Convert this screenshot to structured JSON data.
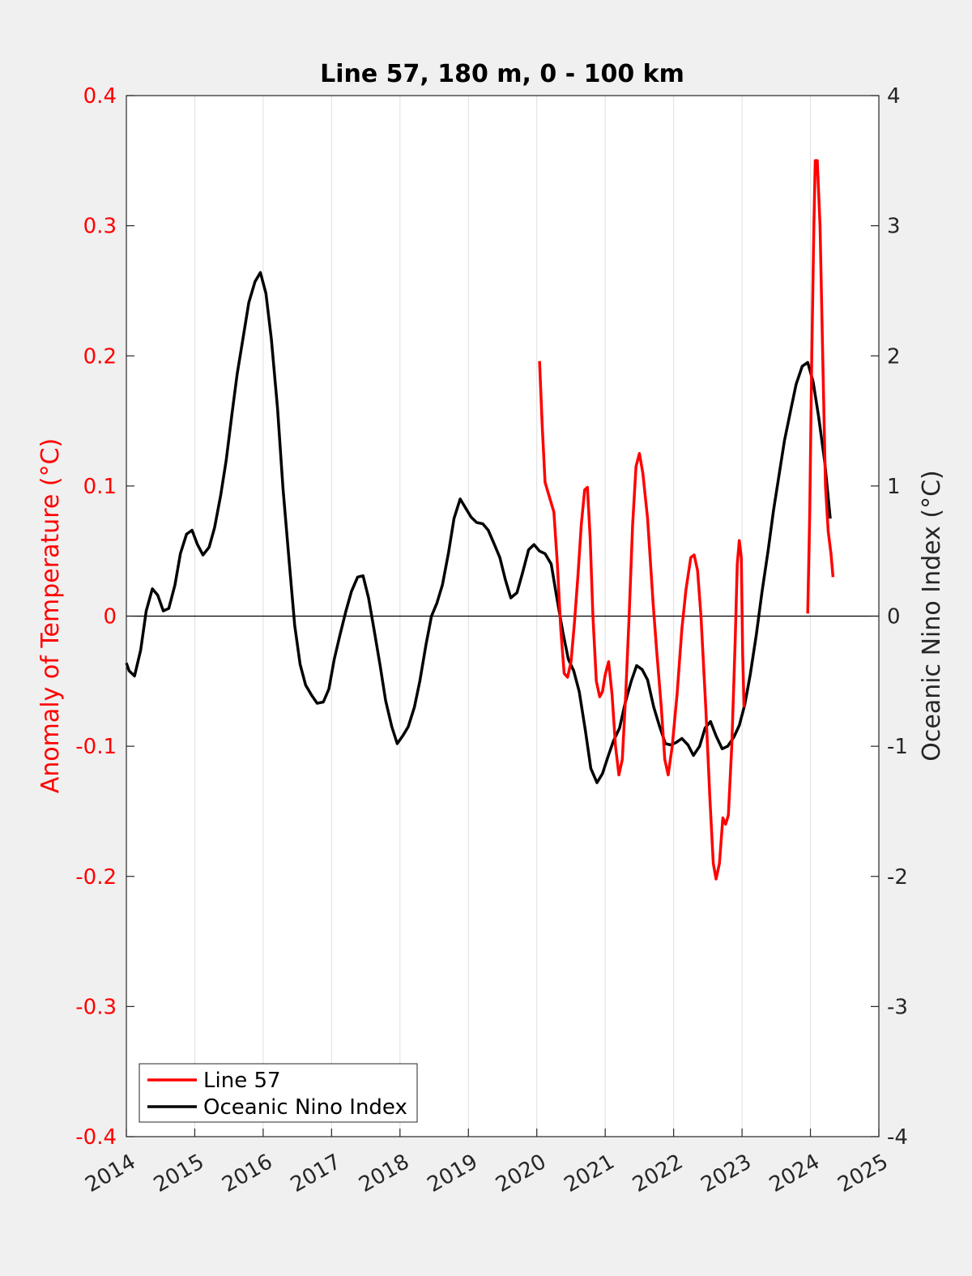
{
  "chart_data": {
    "type": "line",
    "title": "Line 57, 180 m, 0 - 100 km",
    "ylabel_left": "Anomaly of Temperature (°C)",
    "ylabel_right": "Oceanic Nino Index (°C)",
    "xlim": [
      2014,
      2025
    ],
    "ylim_left": [
      -0.4,
      0.4
    ],
    "ylim_right": [
      -4,
      4
    ],
    "xticks": [
      "2014",
      "2015",
      "2016",
      "2017",
      "2018",
      "2019",
      "2020",
      "2021",
      "2022",
      "2023",
      "2024",
      "2025"
    ],
    "yticks_left": [
      "0.4",
      "0.3",
      "0.2",
      "0.1",
      "0",
      "-0.1",
      "-0.2",
      "-0.3",
      "-0.4"
    ],
    "yticks_right": [
      "4",
      "3",
      "2",
      "1",
      "0",
      "-1",
      "-2",
      "-3",
      "-4"
    ],
    "grid": "vertical",
    "zero_line": true,
    "legend_position": "bottom-left",
    "series": [
      {
        "name": "Line 57",
        "axis": "left",
        "color": "#ff0000",
        "segments": [
          [
            [
              2020.04,
              0.196
            ],
            [
              2020.08,
              0.145
            ],
            [
              2020.12,
              0.103
            ],
            [
              2020.17,
              0.094
            ],
            [
              2020.25,
              0.08
            ],
            [
              2020.3,
              0.04
            ],
            [
              2020.35,
              -0.01
            ],
            [
              2020.4,
              -0.044
            ],
            [
              2020.45,
              -0.047
            ],
            [
              2020.5,
              -0.035
            ],
            [
              2020.55,
              -0.005
            ],
            [
              2020.6,
              0.03
            ],
            [
              2020.65,
              0.07
            ],
            [
              2020.7,
              0.097
            ],
            [
              2020.74,
              0.099
            ],
            [
              2020.78,
              0.06
            ],
            [
              2020.82,
              0.0
            ],
            [
              2020.87,
              -0.05
            ],
            [
              2020.92,
              -0.062
            ],
            [
              2020.96,
              -0.058
            ],
            [
              2021.0,
              -0.045
            ],
            [
              2021.05,
              -0.035
            ],
            [
              2021.1,
              -0.06
            ],
            [
              2021.15,
              -0.1
            ],
            [
              2021.2,
              -0.122
            ],
            [
              2021.25,
              -0.11
            ],
            [
              2021.3,
              -0.06
            ],
            [
              2021.35,
              0.0
            ],
            [
              2021.4,
              0.07
            ],
            [
              2021.45,
              0.115
            ],
            [
              2021.5,
              0.125
            ],
            [
              2021.55,
              0.11
            ],
            [
              2021.62,
              0.075
            ],
            [
              2021.7,
              0.01
            ],
            [
              2021.75,
              -0.025
            ],
            [
              2021.82,
              -0.07
            ],
            [
              2021.87,
              -0.11
            ],
            [
              2021.92,
              -0.122
            ],
            [
              2021.98,
              -0.1
            ],
            [
              2022.05,
              -0.06
            ],
            [
              2022.12,
              -0.01
            ],
            [
              2022.18,
              0.02
            ],
            [
              2022.25,
              0.045
            ],
            [
              2022.3,
              0.047
            ],
            [
              2022.35,
              0.035
            ],
            [
              2022.4,
              0.0
            ],
            [
              2022.47,
              -0.07
            ],
            [
              2022.53,
              -0.14
            ],
            [
              2022.58,
              -0.19
            ],
            [
              2022.62,
              -0.202
            ],
            [
              2022.67,
              -0.19
            ],
            [
              2022.72,
              -0.155
            ],
            [
              2022.76,
              -0.16
            ],
            [
              2022.8,
              -0.153
            ],
            [
              2022.85,
              -0.1
            ],
            [
              2022.9,
              -0.02
            ],
            [
              2022.93,
              0.04
            ],
            [
              2022.96,
              0.058
            ],
            [
              2022.99,
              0.045
            ],
            [
              2023.01,
              -0.03
            ],
            [
              2023.03,
              -0.07
            ]
          ],
          [
            [
              2023.96,
              0.002
            ],
            [
              2023.99,
              0.08
            ],
            [
              2024.02,
              0.2
            ],
            [
              2024.05,
              0.3
            ],
            [
              2024.07,
              0.35
            ],
            [
              2024.1,
              0.35
            ],
            [
              2024.14,
              0.3
            ],
            [
              2024.18,
              0.2
            ],
            [
              2024.22,
              0.1
            ],
            [
              2024.26,
              0.065
            ],
            [
              2024.3,
              0.048
            ],
            [
              2024.33,
              0.03
            ]
          ]
        ]
      },
      {
        "name": "Oceanic Nino Index",
        "axis": "right",
        "color": "#000000",
        "segments": [
          [
            [
              2014.0,
              -0.36
            ],
            [
              2014.04,
              -0.42
            ],
            [
              2014.12,
              -0.46
            ],
            [
              2014.21,
              -0.26
            ],
            [
              2014.29,
              0.04
            ],
            [
              2014.38,
              0.21
            ],
            [
              2014.46,
              0.16
            ],
            [
              2014.54,
              0.04
            ],
            [
              2014.62,
              0.06
            ],
            [
              2014.71,
              0.24
            ],
            [
              2014.79,
              0.48
            ],
            [
              2014.88,
              0.63
            ],
            [
              2014.96,
              0.66
            ],
            [
              2015.04,
              0.55
            ],
            [
              2015.12,
              0.47
            ],
            [
              2015.21,
              0.53
            ],
            [
              2015.29,
              0.68
            ],
            [
              2015.38,
              0.93
            ],
            [
              2015.46,
              1.2
            ],
            [
              2015.54,
              1.54
            ],
            [
              2015.62,
              1.86
            ],
            [
              2015.71,
              2.15
            ],
            [
              2015.79,
              2.41
            ],
            [
              2015.88,
              2.57
            ],
            [
              2015.96,
              2.64
            ],
            [
              2016.04,
              2.48
            ],
            [
              2016.12,
              2.13
            ],
            [
              2016.21,
              1.6
            ],
            [
              2016.29,
              0.98
            ],
            [
              2016.38,
              0.42
            ],
            [
              2016.46,
              -0.07
            ],
            [
              2016.54,
              -0.37
            ],
            [
              2016.62,
              -0.53
            ],
            [
              2016.71,
              -0.61
            ],
            [
              2016.79,
              -0.67
            ],
            [
              2016.88,
              -0.66
            ],
            [
              2016.96,
              -0.56
            ],
            [
              2017.04,
              -0.33
            ],
            [
              2017.12,
              -0.15
            ],
            [
              2017.21,
              0.04
            ],
            [
              2017.29,
              0.19
            ],
            [
              2017.38,
              0.3
            ],
            [
              2017.46,
              0.31
            ],
            [
              2017.54,
              0.14
            ],
            [
              2017.62,
              -0.1
            ],
            [
              2017.71,
              -0.38
            ],
            [
              2017.79,
              -0.65
            ],
            [
              2017.88,
              -0.85
            ],
            [
              2017.96,
              -0.98
            ],
            [
              2018.04,
              -0.92
            ],
            [
              2018.12,
              -0.85
            ],
            [
              2018.21,
              -0.7
            ],
            [
              2018.29,
              -0.5
            ],
            [
              2018.38,
              -0.22
            ],
            [
              2018.46,
              0.0
            ],
            [
              2018.54,
              0.1
            ],
            [
              2018.62,
              0.24
            ],
            [
              2018.71,
              0.49
            ],
            [
              2018.79,
              0.75
            ],
            [
              2018.88,
              0.9
            ],
            [
              2018.96,
              0.83
            ],
            [
              2019.04,
              0.76
            ],
            [
              2019.12,
              0.72
            ],
            [
              2019.21,
              0.71
            ],
            [
              2019.29,
              0.66
            ],
            [
              2019.38,
              0.55
            ],
            [
              2019.46,
              0.45
            ],
            [
              2019.54,
              0.28
            ],
            [
              2019.62,
              0.14
            ],
            [
              2019.71,
              0.18
            ],
            [
              2019.79,
              0.33
            ],
            [
              2019.88,
              0.51
            ],
            [
              2019.96,
              0.55
            ],
            [
              2020.04,
              0.5
            ],
            [
              2020.12,
              0.48
            ],
            [
              2020.21,
              0.4
            ],
            [
              2020.29,
              0.15
            ],
            [
              2020.38,
              -0.12
            ],
            [
              2020.46,
              -0.33
            ],
            [
              2020.54,
              -0.42
            ],
            [
              2020.62,
              -0.58
            ],
            [
              2020.71,
              -0.88
            ],
            [
              2020.79,
              -1.17
            ],
            [
              2020.88,
              -1.28
            ],
            [
              2020.96,
              -1.21
            ],
            [
              2021.04,
              -1.08
            ],
            [
              2021.12,
              -0.96
            ],
            [
              2021.21,
              -0.86
            ],
            [
              2021.29,
              -0.67
            ],
            [
              2021.38,
              -0.5
            ],
            [
              2021.46,
              -0.38
            ],
            [
              2021.54,
              -0.41
            ],
            [
              2021.62,
              -0.49
            ],
            [
              2021.71,
              -0.7
            ],
            [
              2021.79,
              -0.84
            ],
            [
              2021.88,
              -0.98
            ],
            [
              2021.96,
              -0.99
            ],
            [
              2022.04,
              -0.97
            ],
            [
              2022.12,
              -0.94
            ],
            [
              2022.21,
              -0.99
            ],
            [
              2022.29,
              -1.07
            ],
            [
              2022.38,
              -1.0
            ],
            [
              2022.46,
              -0.86
            ],
            [
              2022.54,
              -0.81
            ],
            [
              2022.62,
              -0.92
            ],
            [
              2022.71,
              -1.02
            ],
            [
              2022.79,
              -1.0
            ],
            [
              2022.88,
              -0.93
            ],
            [
              2022.96,
              -0.84
            ],
            [
              2023.04,
              -0.68
            ],
            [
              2023.12,
              -0.45
            ],
            [
              2023.21,
              -0.14
            ],
            [
              2023.29,
              0.18
            ],
            [
              2023.38,
              0.5
            ],
            [
              2023.46,
              0.81
            ],
            [
              2023.54,
              1.08
            ],
            [
              2023.62,
              1.35
            ],
            [
              2023.71,
              1.58
            ],
            [
              2023.79,
              1.78
            ],
            [
              2023.88,
              1.92
            ],
            [
              2023.96,
              1.95
            ],
            [
              2024.04,
              1.8
            ],
            [
              2024.12,
              1.53
            ],
            [
              2024.21,
              1.18
            ],
            [
              2024.29,
              0.75
            ]
          ]
        ]
      }
    ]
  }
}
